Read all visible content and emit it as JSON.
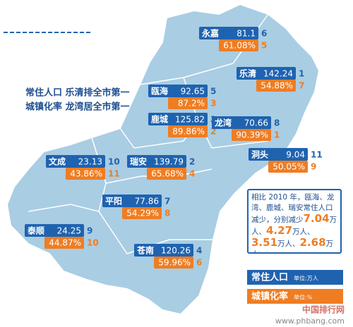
{
  "title": {
    "line1": "常住人口 乐清排全市第一",
    "line2": "城镇化率 龙湾居全市第一"
  },
  "districts": [
    {
      "name": "永嘉",
      "population": "81.1",
      "population_rank": "6",
      "urbanization": "61.08%",
      "urbanization_rank": "5"
    },
    {
      "name": "乐清",
      "population": "142.24",
      "population_rank": "1",
      "urbanization": "54.88%",
      "urbanization_rank": "7"
    },
    {
      "name": "瓯海",
      "population": "92.65",
      "population_rank": "5",
      "urbanization": "87.2%",
      "urbanization_rank": "3"
    },
    {
      "name": "鹿城",
      "population": "125.82",
      "population_rank": "3",
      "urbanization": "89.86%",
      "urbanization_rank": "2"
    },
    {
      "name": "龙湾",
      "population": "70.66",
      "population_rank": "8",
      "urbanization": "90.39%",
      "urbanization_rank": "1"
    },
    {
      "name": "洞头",
      "population": "9.04",
      "population_rank": "11",
      "urbanization": "50.05%",
      "urbanization_rank": "9"
    },
    {
      "name": "文成",
      "population": "23.13",
      "population_rank": "10",
      "urbanization": "43.86%",
      "urbanization_rank": "11"
    },
    {
      "name": "瑞安",
      "population": "139.79",
      "population_rank": "2",
      "urbanization": "65.68%",
      "urbanization_rank": "4"
    },
    {
      "name": "平阳",
      "population": "77.86",
      "population_rank": "7",
      "urbanization": "54.29%",
      "urbanization_rank": "8"
    },
    {
      "name": "泰顺",
      "population": "24.25",
      "population_rank": "9",
      "urbanization": "44.87%",
      "urbanization_rank": "10"
    },
    {
      "name": "苍南",
      "population": "120.26",
      "population_rank": "4",
      "urbanization": "59.96%",
      "urbanization_rank": "6"
    }
  ],
  "note": {
    "intro": "相比 2010 年，瓯海、龙湾、鹿城、瑞安常住人口减少，分别减少",
    "amounts": [
      "7.04",
      "4.27",
      "3.51",
      "2.68"
    ],
    "unit": "万人",
    "separator": "、"
  },
  "legend": [
    {
      "label": "常住人口",
      "unit": "单位:万人"
    },
    {
      "label": "城镇化率",
      "unit": "单位:%"
    }
  ],
  "watermark": {
    "name": "中国排行网",
    "url": "www.phbang.com"
  }
}
